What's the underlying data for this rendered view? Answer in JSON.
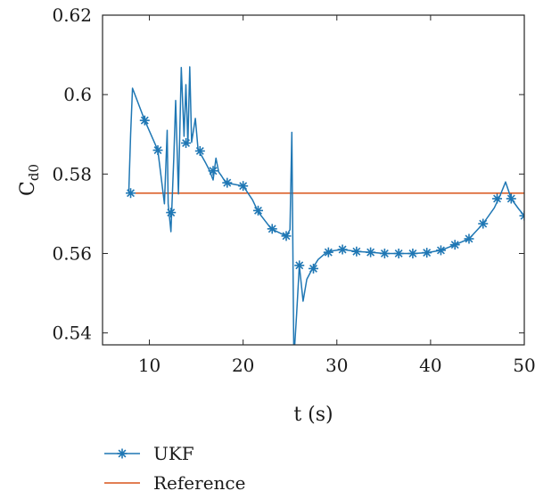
{
  "chart_data": {
    "type": "line",
    "xlabel": "t (s)",
    "ylabel": "Cd0",
    "ylabel_main": "C",
    "ylabel_sub": "d0",
    "xlim": [
      5,
      50
    ],
    "ylim": [
      0.537,
      0.62
    ],
    "xticks": [
      10,
      20,
      30,
      40,
      50
    ],
    "yticks": [
      0.54,
      0.56,
      0.58,
      0.6,
      0.62
    ],
    "xtick_labels": [
      "10",
      "20",
      "30",
      "40",
      "50"
    ],
    "ytick_labels": [
      "0.54",
      "0.56",
      "0.58",
      "0.6",
      "0.62"
    ],
    "grid": false,
    "legend_position": "bottom-left, outside",
    "series": [
      {
        "name": "UKF",
        "color": "#1f77b4",
        "marker": "asterisk",
        "x": [
          7.8,
          8.0,
          8.2,
          9.5,
          10.9,
          11.6,
          11.9,
          12.0,
          12.3,
          12.6,
          12.8,
          13.1,
          13.4,
          13.7,
          13.9,
          14.1,
          14.3,
          14.5,
          14.7,
          14.9,
          15.2,
          15.6,
          16.0,
          16.4,
          16.8,
          17.1,
          17.4,
          17.7,
          18.1,
          18.6,
          20.0,
          21.0,
          21.6,
          23.0,
          24.6,
          25.0,
          25.2,
          25.4,
          25.5,
          25.7,
          26.0,
          26.4,
          26.8,
          27.4,
          28.0,
          29.0,
          30.6,
          32.1,
          33.6,
          35.1,
          36.6,
          38.1,
          39.6,
          41.1,
          42.6,
          44.1,
          45.6,
          46.8,
          47.4,
          48.0,
          48.6,
          49.4,
          50.0
        ],
        "y": [
          0.5752,
          0.59,
          0.6016,
          0.5935,
          0.586,
          0.5725,
          0.591,
          0.5725,
          0.5655,
          0.584,
          0.5985,
          0.575,
          0.6068,
          0.5895,
          0.6025,
          0.5875,
          0.607,
          0.588,
          0.591,
          0.594,
          0.586,
          0.5845,
          0.5828,
          0.581,
          0.5785,
          0.584,
          0.5805,
          0.5795,
          0.578,
          0.5776,
          0.577,
          0.5735,
          0.5705,
          0.5662,
          0.5644,
          0.566,
          0.5905,
          0.5372,
          0.5368,
          0.5445,
          0.557,
          0.548,
          0.5535,
          0.5562,
          0.5585,
          0.5605,
          0.561,
          0.5605,
          0.5603,
          0.56,
          0.56,
          0.56,
          0.5602,
          0.5608,
          0.5622,
          0.5637,
          0.5675,
          0.5715,
          0.5745,
          0.578,
          0.5738,
          0.5712,
          0.5695
        ],
        "marker_x": [
          8.0,
          9.5,
          10.9,
          12.3,
          13.9,
          15.4,
          16.8,
          18.3,
          20.0,
          21.6,
          23.1,
          24.6,
          26.0,
          27.5,
          29.1,
          30.6,
          32.1,
          33.6,
          35.1,
          36.6,
          38.1,
          39.6,
          41.1,
          42.6,
          44.1,
          45.6,
          47.1,
          48.6,
          50.0
        ],
        "marker_y": [
          0.5752,
          0.5935,
          0.586,
          0.5703,
          0.5878,
          0.5858,
          0.5808,
          0.5778,
          0.577,
          0.5708,
          0.5662,
          0.5644,
          0.557,
          0.5562,
          0.5603,
          0.561,
          0.5605,
          0.5603,
          0.56,
          0.56,
          0.56,
          0.5602,
          0.5608,
          0.5622,
          0.5637,
          0.5675,
          0.5738,
          0.5738,
          0.5695
        ]
      },
      {
        "name": "Reference",
        "color": "#d9541a",
        "marker": "none",
        "x": [
          8.0,
          50.0
        ],
        "y": [
          0.5752,
          0.5752
        ]
      }
    ]
  }
}
